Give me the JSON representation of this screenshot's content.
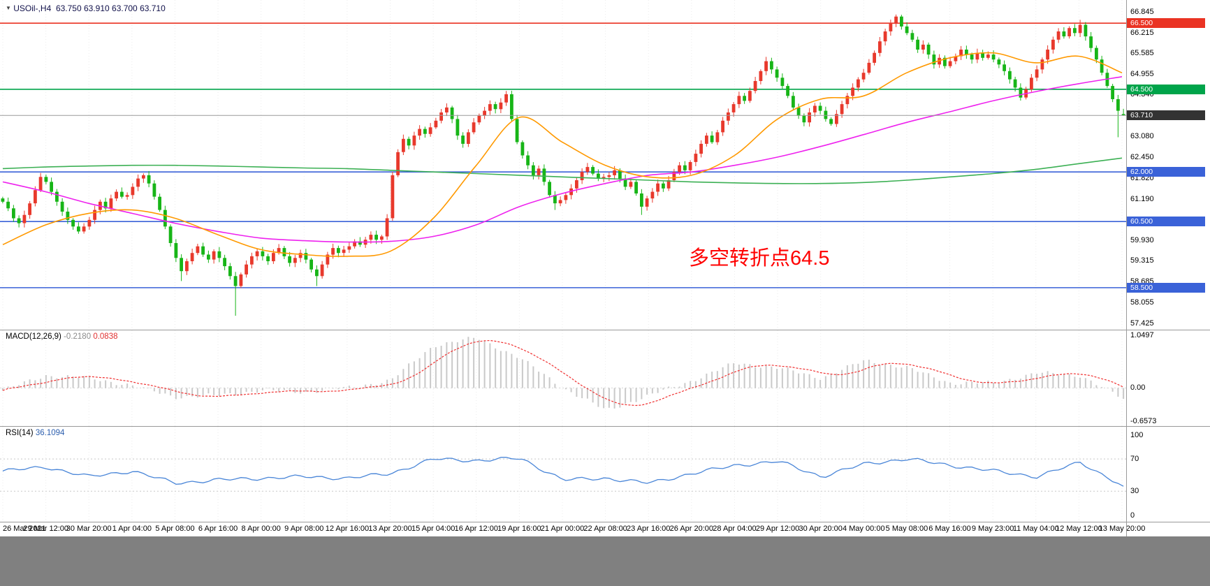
{
  "header": {
    "marker": "▼",
    "symbol_period": "USOil-,H4",
    "ohlc": "63.750 63.910 63.700 63.710"
  },
  "annotation": {
    "text": "多空转折点64.5",
    "color": "#ff0000"
  },
  "chart_data": {
    "type": "candlestick",
    "ylim": [
      57.23,
      67.2
    ],
    "current_price": 63.71,
    "time_labels": [
      "26 Mar 2021",
      "29 Mar 12:00",
      "30 Mar 20:00",
      "1 Apr 04:00",
      "5 Apr 08:00",
      "6 Apr 16:00",
      "8 Apr 00:00",
      "9 Apr 08:00",
      "12 Apr 16:00",
      "13 Apr 20:00",
      "15 Apr 04:00",
      "16 Apr 12:00",
      "19 Apr 16:00",
      "21 Apr 00:00",
      "22 Apr 08:00",
      "23 Apr 16:00",
      "26 Apr 20:00",
      "28 Apr 04:00",
      "29 Apr 12:00",
      "30 Apr 20:00",
      "4 May 00:00",
      "5 May 08:00",
      "6 May 16:00",
      "9 May 23:00",
      "11 May 04:00",
      "12 May 12:00",
      "13 May 20:00"
    ],
    "price_ticks": [
      "66.845",
      "66.215",
      "65.585",
      "64.955",
      "64.340",
      "63.080",
      "62.450",
      "61.820",
      "61.190",
      "59.930",
      "59.315",
      "58.685",
      "58.055",
      "57.425"
    ],
    "price_boxes": [
      {
        "label": "66.500",
        "price": 66.5,
        "color": "#ea3323"
      },
      {
        "label": "64.500",
        "price": 64.5,
        "color": "#00a44a"
      },
      {
        "label": "63.710",
        "price": 63.71,
        "color": "#333333"
      },
      {
        "label": "62.000",
        "price": 62.0,
        "color": "#3a62d8"
      },
      {
        "label": "60.500",
        "price": 60.5,
        "color": "#3a62d8"
      },
      {
        "label": "58.500",
        "price": 58.5,
        "color": "#3a62d8"
      }
    ],
    "hlines": [
      {
        "price": 66.5,
        "color": "#ea3323"
      },
      {
        "price": 64.5,
        "color": "#00a44a"
      },
      {
        "price": 62.0,
        "color": "#3a62d8"
      },
      {
        "price": 60.5,
        "color": "#3a62d8"
      },
      {
        "price": 58.5,
        "color": "#3a62d8"
      }
    ],
    "colors": {
      "up": "#e8392c",
      "down": "#17b517"
    },
    "candles": {
      "first_open": 61.2,
      "closes": [
        61.1,
        60.9,
        60.6,
        60.45,
        60.7,
        61.05,
        61.45,
        61.85,
        61.7,
        61.4,
        61.1,
        60.8,
        60.55,
        60.35,
        60.2,
        60.35,
        60.55,
        60.85,
        61.1,
        60.9,
        61.2,
        61.4,
        61.25,
        61.3,
        61.55,
        61.8,
        61.9,
        61.65,
        61.25,
        60.85,
        60.35,
        59.85,
        59.4,
        59.0,
        59.3,
        59.55,
        59.75,
        59.5,
        59.35,
        59.6,
        59.4,
        59.15,
        58.85,
        58.55,
        58.9,
        59.2,
        59.45,
        59.6,
        59.45,
        59.3,
        59.55,
        59.7,
        59.45,
        59.25,
        59.4,
        59.55,
        59.35,
        59.05,
        58.85,
        59.2,
        59.5,
        59.7,
        59.55,
        59.65,
        59.75,
        59.9,
        59.8,
        59.95,
        60.1,
        59.95,
        60.05,
        60.6,
        61.9,
        62.6,
        63.0,
        62.8,
        63.1,
        63.3,
        63.15,
        63.35,
        63.55,
        63.8,
        63.95,
        63.6,
        63.1,
        62.85,
        63.2,
        63.5,
        63.7,
        63.85,
        64.05,
        63.9,
        64.1,
        64.35,
        63.6,
        62.9,
        62.5,
        62.2,
        61.9,
        62.1,
        61.7,
        61.3,
        61.05,
        61.15,
        61.3,
        61.5,
        61.75,
        62.0,
        62.15,
        61.95,
        61.8,
        61.85,
        61.9,
        62.05,
        61.8,
        61.55,
        61.7,
        61.35,
        60.95,
        61.2,
        61.4,
        61.65,
        61.5,
        61.75,
        62.0,
        62.2,
        62.05,
        62.3,
        62.55,
        62.85,
        63.1,
        62.9,
        63.2,
        63.55,
        63.8,
        64.05,
        64.3,
        64.15,
        64.45,
        64.75,
        65.05,
        65.35,
        65.1,
        64.85,
        64.6,
        64.3,
        63.95,
        63.7,
        63.5,
        63.8,
        64.0,
        63.85,
        63.6,
        63.45,
        63.75,
        64.05,
        64.3,
        64.55,
        64.8,
        65.0,
        65.3,
        65.6,
        65.95,
        66.25,
        66.5,
        66.7,
        66.4,
        66.2,
        66.0,
        65.7,
        65.85,
        65.55,
        65.25,
        65.45,
        65.2,
        65.35,
        65.5,
        65.7,
        65.55,
        65.4,
        65.6,
        65.45,
        65.55,
        65.4,
        65.25,
        65.05,
        64.8,
        64.55,
        64.25,
        64.5,
        64.85,
        65.1,
        65.4,
        65.7,
        66.0,
        66.25,
        66.1,
        66.35,
        66.2,
        66.45,
        66.1,
        65.75,
        65.4,
        65.0,
        64.6,
        64.2,
        63.85,
        63.71
      ],
      "open_overrides": {
        "207": 63.75
      },
      "high_overrides": {
        "7": 61.97,
        "93": 64.45,
        "141": 65.48,
        "165": 66.76,
        "199": 66.6,
        "207": 63.91
      },
      "low_overrides": {
        "33": 58.7,
        "43": 57.65,
        "58": 58.55,
        "102": 60.85,
        "118": 60.7,
        "206": 63.05,
        "207": 63.7
      }
    },
    "moving_averages": [
      {
        "name": "ma-slow-line",
        "color": "#3cb054",
        "values": [
          62.1,
          62.15,
          62.18,
          62.2,
          62.2,
          62.18,
          62.15,
          62.12,
          62.1,
          62.05,
          62.0,
          61.95,
          61.9,
          61.85,
          61.8,
          61.75,
          61.7,
          61.67,
          61.65,
          61.65,
          61.68,
          61.75,
          61.85,
          61.95,
          62.08,
          62.25,
          62.42
        ]
      },
      {
        "name": "ma-mid-line",
        "color": "#ee22ee",
        "values": [
          61.7,
          61.4,
          61.05,
          60.75,
          60.45,
          60.2,
          60.0,
          59.92,
          59.88,
          59.9,
          60.05,
          60.4,
          60.95,
          61.35,
          61.65,
          61.9,
          62.0,
          62.2,
          62.45,
          62.77,
          63.13,
          63.5,
          63.82,
          64.15,
          64.43,
          64.67,
          64.88
        ]
      },
      {
        "name": "ma-fast-line",
        "color": "#ff9900",
        "values": [
          59.8,
          60.4,
          60.75,
          60.85,
          60.6,
          60.1,
          59.65,
          59.5,
          59.45,
          59.6,
          60.6,
          62.2,
          63.65,
          62.9,
          62.2,
          61.85,
          61.9,
          62.5,
          63.6,
          64.2,
          64.3,
          65.0,
          65.45,
          65.6,
          65.3,
          65.5,
          65.0
        ]
      }
    ],
    "macd": {
      "label": "MACD(12,26,9)",
      "main_value": "-0.2180",
      "signal_value": "0.0838",
      "ylim": [
        -0.76,
        1.15
      ],
      "axis_ticks": [
        "1.0497",
        "0.00",
        "-0.6573"
      ],
      "hist_color": "#c9c9c9",
      "signal_color": "#f03030",
      "main_anchors": [
        -0.05,
        0.25,
        0.2,
        0.05,
        -0.18,
        -0.15,
        -0.05,
        -0.08,
        0.0,
        0.15,
        0.85,
        1.0,
        0.6,
        0.0,
        -0.45,
        -0.15,
        0.15,
        0.5,
        0.4,
        0.2,
        0.55,
        0.4,
        0.1,
        0.1,
        0.3,
        0.25,
        -0.218
      ]
    },
    "rsi": {
      "label": "RSI(14)",
      "value": "36.1094",
      "ylim": [
        -8,
        110
      ],
      "axis_ticks": [
        "100",
        "70",
        "30",
        "0"
      ],
      "levels": [
        70,
        30
      ],
      "color": "#4a86d8",
      "anchors": [
        55,
        60,
        48,
        55,
        40,
        44,
        46,
        48,
        46,
        52,
        70,
        68,
        71,
        44,
        46,
        40,
        52,
        62,
        67,
        48,
        64,
        70,
        62,
        55,
        48,
        66,
        36
      ]
    }
  }
}
